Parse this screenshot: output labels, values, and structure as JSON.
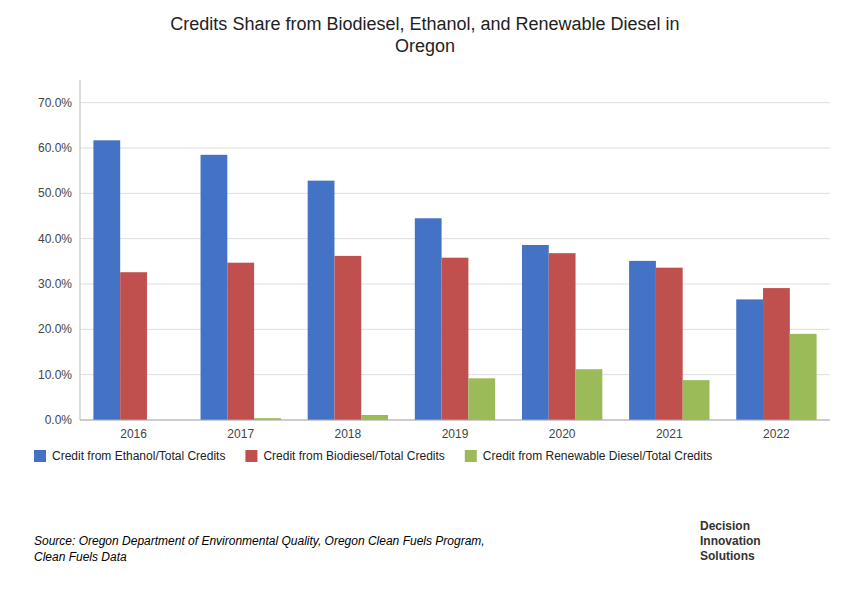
{
  "chart_data": {
    "type": "bar",
    "title": "Credits Share from Biodiesel, Ethanol, and Renewable Diesel in\nOregon",
    "categories": [
      "2016",
      "2017",
      "2018",
      "2019",
      "2020",
      "2021",
      "2022"
    ],
    "series": [
      {
        "name": "Credit from Ethanol/Total Credits",
        "color": "#4472C4",
        "values": [
          0.617,
          0.585,
          0.528,
          0.445,
          0.386,
          0.351,
          0.266
        ]
      },
      {
        "name": "Credit from Biodiesel/Total Credits",
        "color": "#C0504D",
        "values": [
          0.326,
          0.347,
          0.362,
          0.358,
          0.368,
          0.336,
          0.291
        ]
      },
      {
        "name": "Credit from Renewable Diesel/Total Credits",
        "color": "#9BBB59",
        "values": [
          0.0,
          0.004,
          0.011,
          0.092,
          0.112,
          0.088,
          0.19
        ]
      }
    ],
    "ylim": [
      0,
      0.75
    ],
    "yticks": [
      {
        "value": 0.0,
        "label": "0.0%"
      },
      {
        "value": 0.1,
        "label": "10.0%"
      },
      {
        "value": 0.2,
        "label": "20.0%"
      },
      {
        "value": 0.3,
        "label": "30.0%"
      },
      {
        "value": 0.4,
        "label": "40.0%"
      },
      {
        "value": 0.5,
        "label": "50.0%"
      },
      {
        "value": 0.6,
        "label": "60.0%"
      },
      {
        "value": 0.7,
        "label": "70.0%"
      }
    ],
    "grid": true,
    "legend": "bottom",
    "annotations": [
      "Source: Oregon Department of Environmental Quality, Oregon Clean Fuels Program,\nClean Fuels Data",
      "Decision\nInnovation\nSolutions"
    ]
  }
}
